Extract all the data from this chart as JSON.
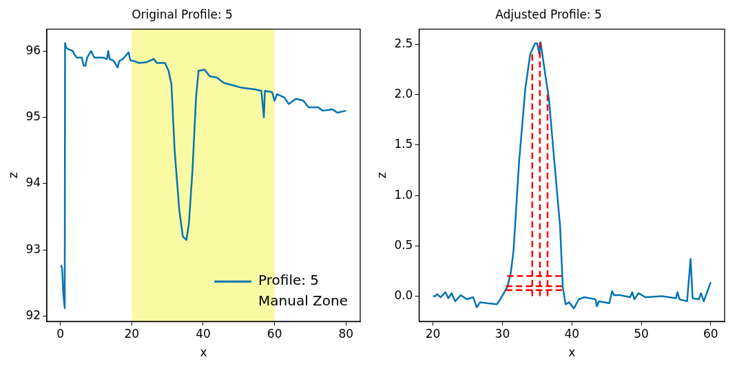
{
  "chart_data": [
    {
      "type": "line",
      "title": "Original Profile: 5",
      "xlabel": "x",
      "ylabel": "z",
      "xlim": [
        -3.8,
        84
      ],
      "ylim": [
        91.92,
        96.33
      ],
      "xticks": [
        0,
        20,
        40,
        60,
        80
      ],
      "yticks": [
        92,
        93,
        94,
        95,
        96
      ],
      "legend": "bottom right",
      "bands": [
        {
          "axis": "x",
          "from": 20,
          "to": 60,
          "label": "Manual Zone",
          "color": "#fafaa5"
        }
      ],
      "series": [
        {
          "name": "Profile: 5",
          "color": "#0173b2",
          "x": [
            0.2,
            0.5,
            0.8,
            1.2,
            1.3,
            1.6,
            2.5,
            3.5,
            3.9,
            4.6,
            6,
            6.5,
            7,
            7.5,
            8,
            8.6,
            9.5,
            10.5,
            12,
            13,
            13.4,
            13.8,
            15,
            16,
            16.5,
            17.5,
            19.1,
            19.6,
            20.5,
            22,
            24,
            26.2,
            27,
            29.3,
            30.3,
            31.1,
            32,
            33.3,
            34.3,
            35.3,
            36,
            37,
            38,
            38.7,
            40.4,
            41.8,
            43.8,
            45.8,
            48.5,
            50.5,
            54.6,
            56.3,
            57,
            57.3,
            59.3,
            60,
            60.7,
            62.7,
            64,
            66,
            68.1,
            69.5,
            72.2,
            73.5,
            76.2,
            77.6,
            80
          ],
          "values": [
            92.77,
            92.7,
            92.35,
            92.12,
            96.12,
            96.05,
            96.02,
            96.0,
            95.95,
            95.9,
            95.9,
            95.78,
            95.78,
            95.9,
            95.95,
            96.0,
            95.9,
            95.9,
            95.9,
            95.88,
            96.0,
            95.88,
            95.85,
            95.75,
            95.85,
            95.88,
            95.98,
            95.86,
            95.85,
            95.82,
            95.83,
            95.88,
            95.82,
            95.82,
            95.7,
            95.5,
            94.5,
            93.6,
            93.2,
            93.15,
            93.4,
            94.2,
            95.3,
            95.7,
            95.72,
            95.62,
            95.6,
            95.52,
            95.48,
            95.45,
            95.42,
            95.4,
            95.0,
            95.4,
            95.38,
            95.25,
            95.35,
            95.3,
            95.2,
            95.28,
            95.25,
            95.15,
            95.15,
            95.1,
            95.12,
            95.07,
            95.1
          ]
        }
      ]
    },
    {
      "type": "line",
      "title": "Adjusted Profile: 5",
      "xlabel": "x",
      "ylabel": "z",
      "xlim": [
        18,
        62
      ],
      "ylim": [
        -0.25,
        2.65
      ],
      "xticks": [
        20,
        30,
        40,
        50,
        60
      ],
      "yticks": [
        {
          "value": 0,
          "label": "0.0"
        },
        {
          "value": 0.5,
          "label": "0.5"
        },
        {
          "value": 1,
          "label": "1.0"
        },
        {
          "value": 1.5,
          "label": "1.5"
        },
        {
          "value": 2,
          "label": "2.0"
        },
        {
          "value": 2.5,
          "label": "2.5"
        }
      ],
      "series": [
        {
          "color": "#0173b2",
          "x": [
            20,
            20.3,
            20.6,
            21.1,
            21.8,
            22.2,
            22.7,
            23.2,
            24,
            24.9,
            25.8,
            26.3,
            26.8,
            27.8,
            29.2,
            29.7,
            30.2,
            30.7,
            31.2,
            31.6,
            32.4,
            33.3,
            34,
            34.7,
            35,
            35.3,
            35.5,
            36,
            36.7,
            37.4,
            38.3,
            38.7,
            39.1,
            39.6,
            40.3,
            41,
            41.8,
            43.4,
            43.6,
            43.9,
            45.4,
            45.8,
            46.1,
            47,
            48.4,
            48.7,
            49,
            49.6,
            50.6,
            53,
            55,
            55.2,
            55.5,
            56.6,
            57.1,
            57.4,
            58.3,
            58.6,
            59,
            60
          ],
          "values": [
            0,
            0,
            0.02,
            -0.01,
            0.04,
            -0.02,
            0.03,
            -0.05,
            0.01,
            -0.03,
            -0.01,
            -0.11,
            -0.06,
            -0.07,
            -0.08,
            -0.03,
            0.03,
            0.09,
            0.23,
            0.45,
            1.33,
            2.06,
            2.4,
            2.51,
            2.51,
            2.41,
            2.52,
            2.28,
            1.96,
            1.4,
            0.7,
            0.09,
            -0.08,
            -0.06,
            -0.12,
            -0.03,
            -0.01,
            -0.03,
            -0.1,
            -0.05,
            -0.07,
            0.05,
            0.01,
            0.01,
            -0.01,
            0.04,
            -0.03,
            0.03,
            -0.01,
            0,
            -0.02,
            0.04,
            -0.03,
            -0.05,
            0.37,
            -0.02,
            -0.03,
            0.03,
            -0.05,
            0.14
          ]
        },
        {
          "color": "#ff0000",
          "line_style": "dashed",
          "x": [
            34.3,
            34.3
          ],
          "values": [
            0,
            2.4
          ]
        },
        {
          "color": "#ff0000",
          "line_style": "dashed",
          "x": [
            35.4,
            35.4
          ],
          "values": [
            0,
            2.52
          ]
        },
        {
          "color": "#ff0000",
          "line_style": "dashed",
          "x": [
            36.5,
            36.5
          ],
          "values": [
            0,
            2.0
          ]
        },
        {
          "color": "#ff0000",
          "line_style": "dashed",
          "x": [
            30.7,
            38.5
          ],
          "values": [
            0.2,
            0.2
          ]
        },
        {
          "color": "#ff0000",
          "line_style": "dashed",
          "x": [
            30.5,
            38.6
          ],
          "values": [
            0.1,
            0.1
          ]
        },
        {
          "color": "#ff0000",
          "line_style": "dashed",
          "x": [
            30.5,
            38.6
          ],
          "values": [
            0.06,
            0.06
          ]
        }
      ]
    }
  ]
}
